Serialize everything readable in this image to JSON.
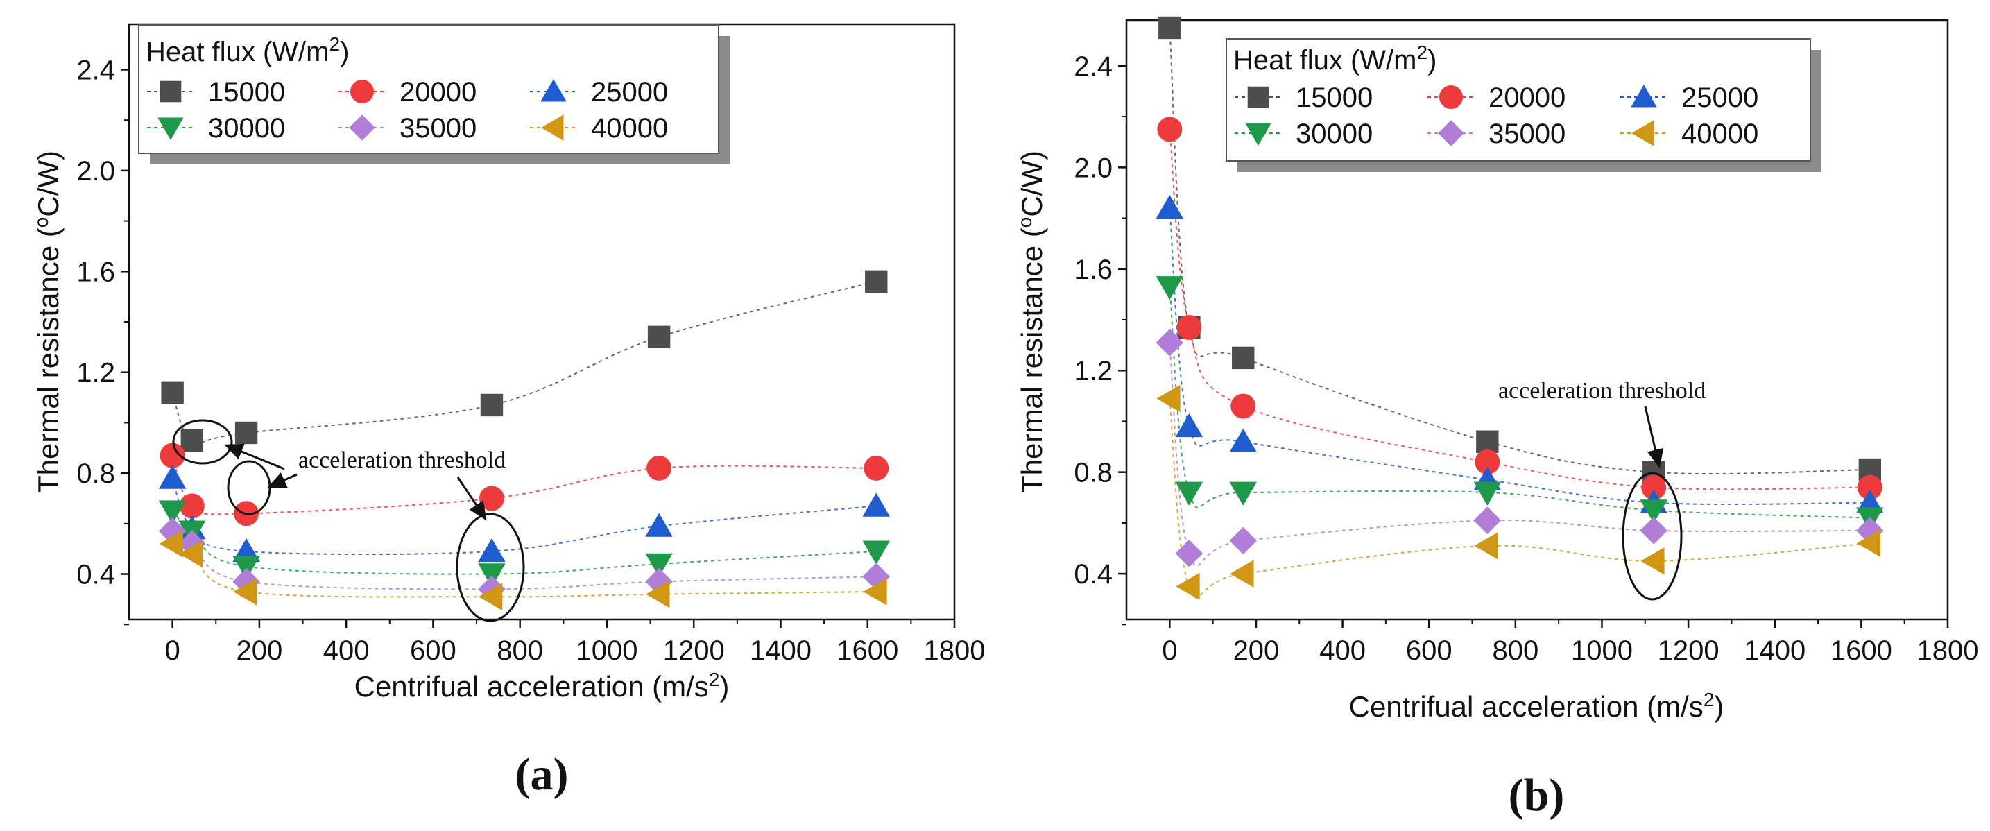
{
  "chart_data": [
    {
      "type": "scatter",
      "panel_label": "(a)",
      "xlabel": "Centrifual acceleration (m/s²)",
      "ylabel": "Thermal resistance (ºC/W)",
      "xlim": [
        -100,
        1800
      ],
      "ylim": [
        0.22,
        2.58
      ],
      "xticks": [
        0,
        200,
        400,
        600,
        800,
        1000,
        1200,
        1400,
        1600,
        1800
      ],
      "yticks": [
        0.4,
        0.8,
        1.2,
        1.6,
        2.0,
        2.4
      ],
      "legend_title": "Heat flux (W/m²)",
      "legend_position": "top-left",
      "x": [
        0,
        45,
        170,
        735,
        1120,
        1620
      ],
      "series": [
        {
          "name": "15000",
          "color": "#4d4d4d",
          "marker": "square",
          "values": [
            1.12,
            0.93,
            0.96,
            1.07,
            1.34,
            1.56
          ]
        },
        {
          "name": "20000",
          "color": "#ee3a3a",
          "marker": "circle",
          "values": [
            0.87,
            0.67,
            0.64,
            0.7,
            0.82,
            0.82
          ]
        },
        {
          "name": "25000",
          "color": "#1f5ccf",
          "marker": "triangle-up",
          "values": [
            0.78,
            0.58,
            0.49,
            0.49,
            0.59,
            0.67
          ]
        },
        {
          "name": "30000",
          "color": "#1c9a4a",
          "marker": "triangle-down",
          "values": [
            0.65,
            0.57,
            0.43,
            0.4,
            0.44,
            0.49
          ]
        },
        {
          "name": "35000",
          "color": "#b07ed6",
          "marker": "diamond",
          "values": [
            0.57,
            0.52,
            0.37,
            0.34,
            0.37,
            0.39
          ]
        },
        {
          "name": "40000",
          "color": "#d19614",
          "marker": "triangle-left",
          "values": [
            0.52,
            0.48,
            0.33,
            0.31,
            0.32,
            0.33
          ]
        }
      ],
      "annotation": "acceleration threshold"
    },
    {
      "type": "scatter",
      "panel_label": "(b)",
      "xlabel": "Centrifual acceleration (m/s²)",
      "ylabel": "Thermal resistance (ºC/W)",
      "xlim": [
        -100,
        1800
      ],
      "ylim": [
        0.22,
        2.58
      ],
      "xticks": [
        0,
        200,
        400,
        600,
        800,
        1000,
        1200,
        1400,
        1600,
        1800
      ],
      "yticks": [
        0.4,
        0.8,
        1.2,
        1.6,
        2.0,
        2.4
      ],
      "legend_title": "Heat flux (W/m²)",
      "legend_position": "top-right",
      "x": [
        0,
        45,
        170,
        735,
        1120,
        1620
      ],
      "series": [
        {
          "name": "15000",
          "color": "#4d4d4d",
          "marker": "square",
          "values": [
            2.55,
            1.37,
            1.25,
            0.92,
            0.8,
            0.81
          ]
        },
        {
          "name": "20000",
          "color": "#ee3a3a",
          "marker": "circle",
          "values": [
            2.15,
            1.37,
            1.06,
            0.84,
            0.74,
            0.74
          ]
        },
        {
          "name": "25000",
          "color": "#1f5ccf",
          "marker": "triangle-up",
          "values": [
            1.84,
            0.98,
            0.92,
            0.77,
            0.68,
            0.68
          ]
        },
        {
          "name": "30000",
          "color": "#1c9a4a",
          "marker": "triangle-down",
          "values": [
            1.53,
            0.72,
            0.72,
            0.72,
            0.65,
            0.62
          ]
        },
        {
          "name": "35000",
          "color": "#b07ed6",
          "marker": "diamond",
          "values": [
            1.31,
            0.48,
            0.53,
            0.61,
            0.57,
            0.57
          ]
        },
        {
          "name": "40000",
          "color": "#d19614",
          "marker": "triangle-left",
          "values": [
            1.09,
            0.35,
            0.4,
            0.51,
            0.45,
            0.52
          ]
        }
      ],
      "annotation": "acceleration threshold"
    }
  ]
}
